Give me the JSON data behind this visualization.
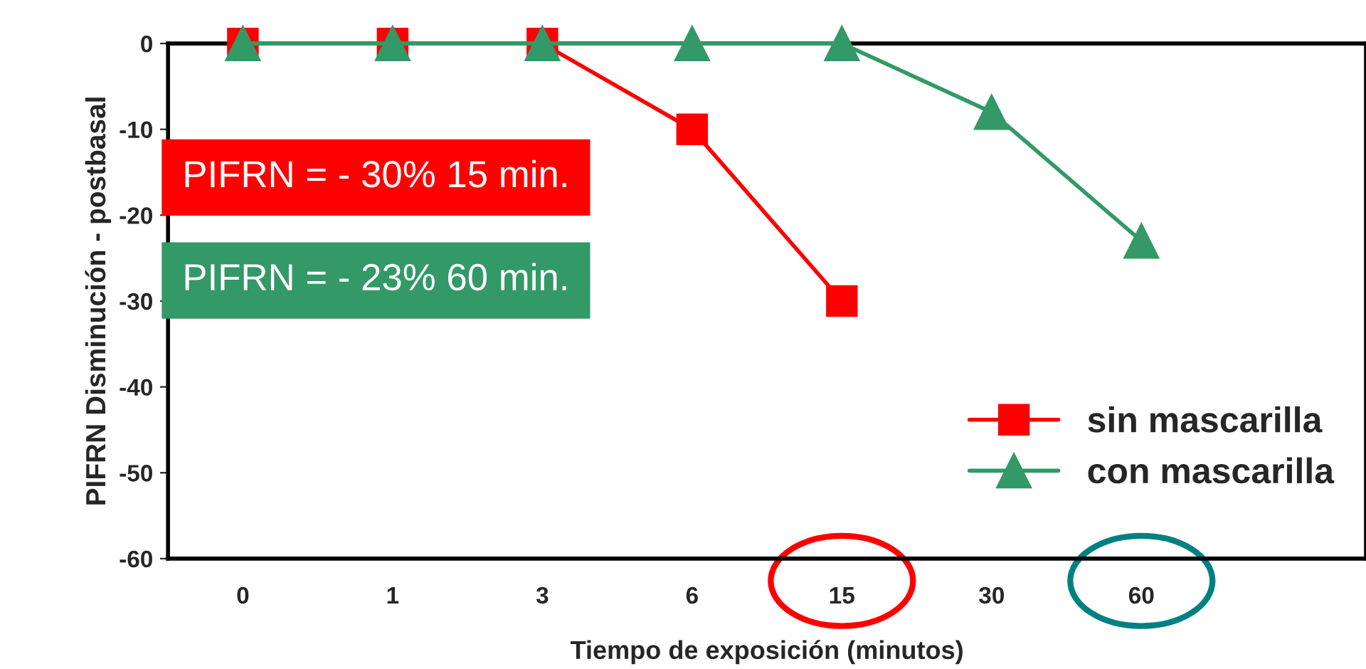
{
  "chart_data": {
    "type": "line",
    "xlabel": "Tiempo de exposición (minutos)",
    "ylabel": "PIFRN Disminución - postbasal",
    "categories": [
      "0",
      "1",
      "3",
      "6",
      "15",
      "30",
      "60",
      null
    ],
    "series": [
      {
        "name": "sin mascarilla",
        "color": "#ff0000",
        "marker": "square",
        "values": [
          0,
          0,
          0,
          -10,
          -30,
          null,
          null,
          null
        ]
      },
      {
        "name": "con mascarilla",
        "color": "#339966",
        "marker": "triangle",
        "values": [
          0,
          0,
          0,
          0,
          0,
          -8,
          -23,
          null
        ]
      }
    ],
    "ylim": [
      -60,
      0
    ],
    "yticks": [
      -60,
      -50,
      -40,
      -30,
      -20,
      -10,
      0
    ],
    "annotations": [
      "PIFRN = - 30% 15 min.",
      "PIFRN = - 23% 60 min."
    ],
    "grid": false,
    "legend": "bottom right",
    "line_style": "solid"
  }
}
